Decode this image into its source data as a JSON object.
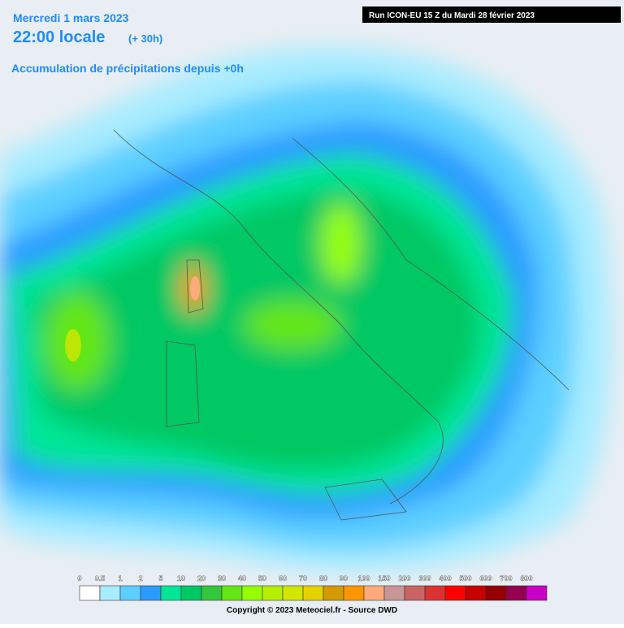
{
  "header": {
    "date": "Mercredi 1 mars 2023",
    "time": "22:00 locale",
    "offset": "(+ 30h)",
    "subtitle": "Accumulation de précipitations depuis +0h",
    "run": "Run ICON-EU 15 Z du Mardi 28 février 2023"
  },
  "legend": {
    "items": [
      {
        "label": "0",
        "color": "#ffffff"
      },
      {
        "label": "0.5",
        "color": "#a8ecff"
      },
      {
        "label": "1",
        "color": "#5ccfff"
      },
      {
        "label": "2",
        "color": "#2a9cff"
      },
      {
        "label": "5",
        "color": "#00e696"
      },
      {
        "label": "10",
        "color": "#00c864"
      },
      {
        "label": "20",
        "color": "#32c83c"
      },
      {
        "label": "30",
        "color": "#64e614"
      },
      {
        "label": "40",
        "color": "#96ff00"
      },
      {
        "label": "50",
        "color": "#b4f000"
      },
      {
        "label": "60",
        "color": "#d2e600"
      },
      {
        "label": "70",
        "color": "#e6d200"
      },
      {
        "label": "80",
        "color": "#d29b00"
      },
      {
        "label": "90",
        "color": "#ff9600"
      },
      {
        "label": "100",
        "color": "#ffaa7a"
      },
      {
        "label": "150",
        "color": "#c89696"
      },
      {
        "label": "200",
        "color": "#c86464"
      },
      {
        "label": "300",
        "color": "#dc3232"
      },
      {
        "label": "400",
        "color": "#ff0000"
      },
      {
        "label": "500",
        "color": "#c80000"
      },
      {
        "label": "600",
        "color": "#960000"
      },
      {
        "label": "700",
        "color": "#960050"
      },
      {
        "label": "800",
        "color": "#c800c8"
      }
    ]
  },
  "footer": {
    "copyright": "Copyright © 2023 Meteociel.fr - Source DWD"
  }
}
